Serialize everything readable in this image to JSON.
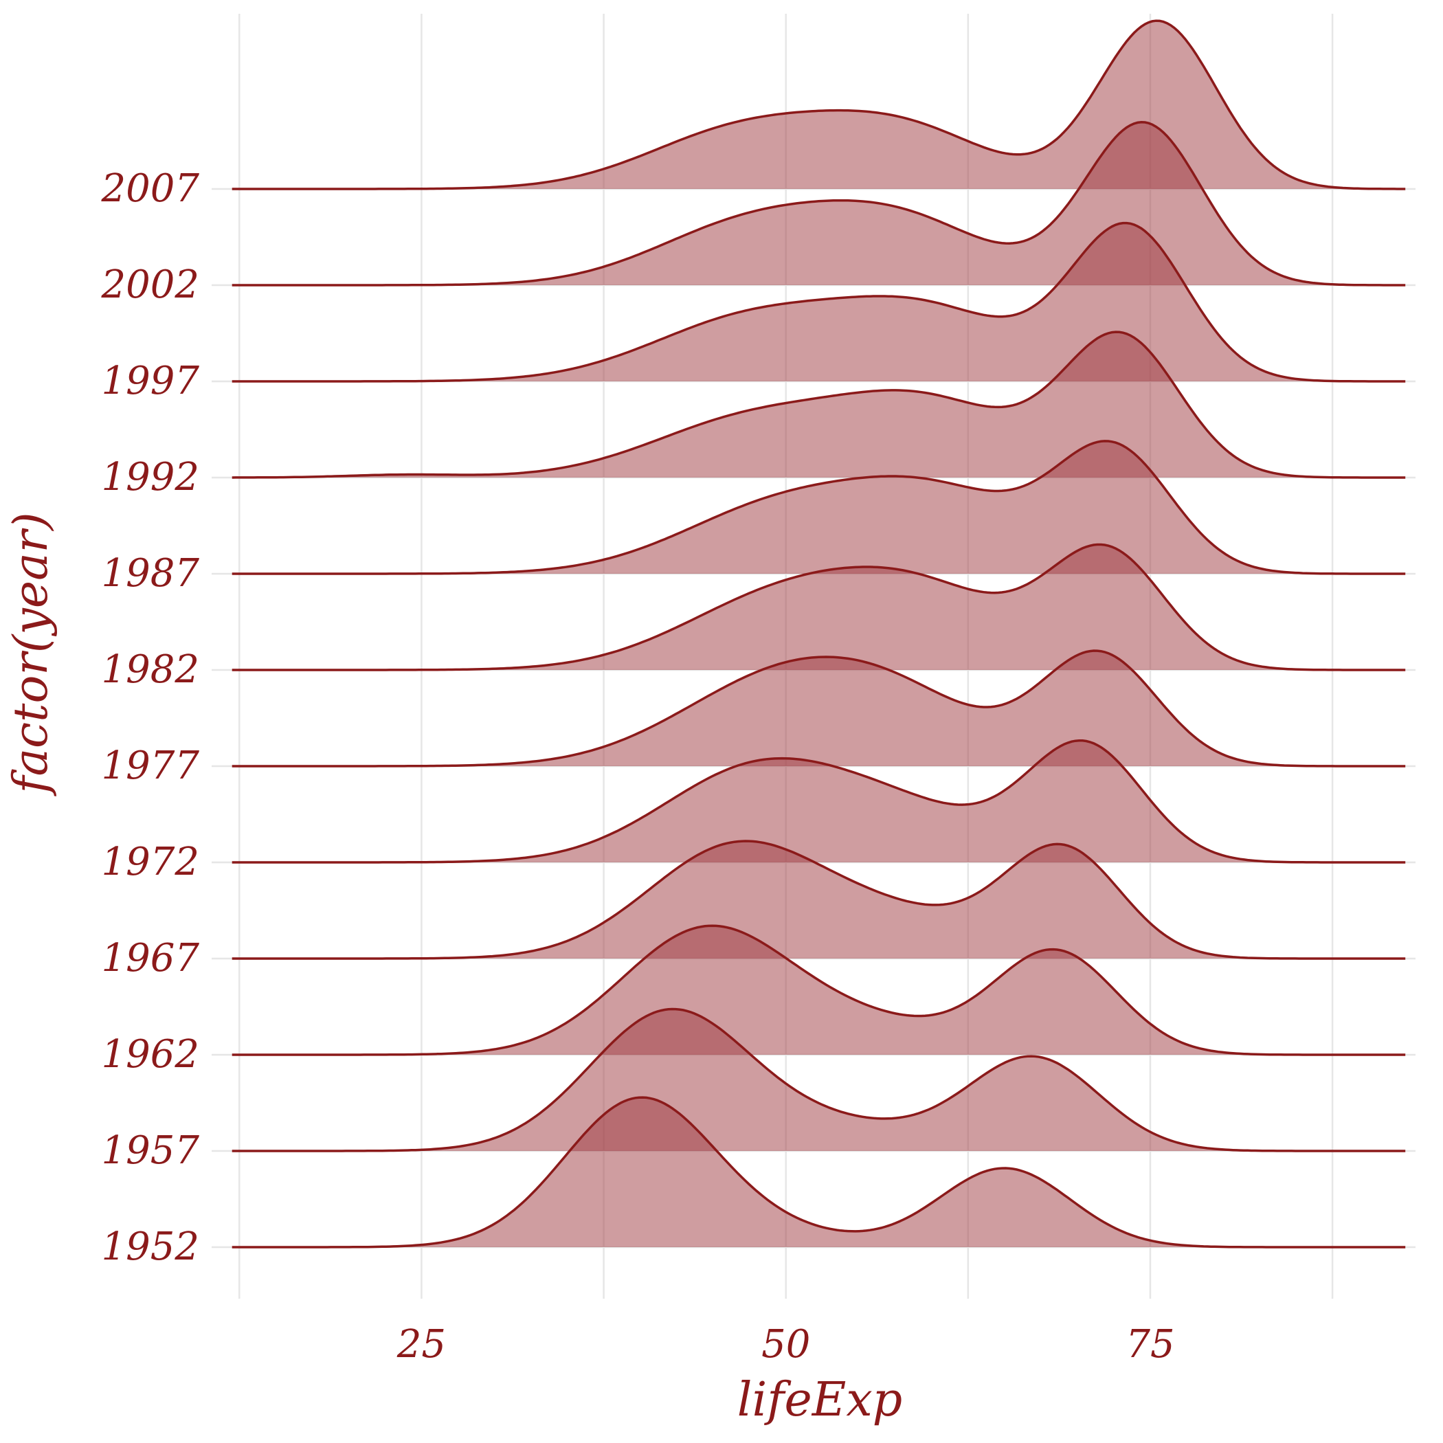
{
  "chart_data": {
    "type": "ridgeline",
    "title": "",
    "xlabel": "lifeExp",
    "ylabel": "factor(year)",
    "xlim": [
      10.6,
      93.2
    ],
    "x_ticks": [
      25,
      50,
      75
    ],
    "x_minor_grid": [
      12.5,
      37.5,
      62.5,
      87.5
    ],
    "grid": true,
    "fill_color": "#a03c41",
    "line_color": "#8b1a1a",
    "text_color": "#8b1a1a",
    "categories": [
      "1952",
      "1957",
      "1962",
      "1967",
      "1972",
      "1977",
      "1982",
      "1987",
      "1992",
      "1997",
      "2002",
      "2007"
    ],
    "series": [
      {
        "name": "1952",
        "peaks": [
          {
            "mu": 40.0,
            "sigma": 5.2,
            "h": 1.54
          },
          {
            "mu": 50.0,
            "sigma": 5.0,
            "h": 0.12
          },
          {
            "mu": 65.0,
            "sigma": 4.5,
            "h": 0.82
          }
        ]
      },
      {
        "name": "1957",
        "peaks": [
          {
            "mu": 42.0,
            "sigma": 5.5,
            "h": 1.44
          },
          {
            "mu": 54.0,
            "sigma": 6.0,
            "h": 0.25
          },
          {
            "mu": 67.0,
            "sigma": 4.5,
            "h": 0.96
          }
        ]
      },
      {
        "name": "1962",
        "peaks": [
          {
            "mu": 44.5,
            "sigma": 5.8,
            "h": 1.29
          },
          {
            "mu": 56.0,
            "sigma": 6.0,
            "h": 0.3
          },
          {
            "mu": 68.5,
            "sigma": 4.2,
            "h": 1.06
          }
        ]
      },
      {
        "name": "1967",
        "peaks": [
          {
            "mu": 46.5,
            "sigma": 6.0,
            "h": 1.15
          },
          {
            "mu": 58.0,
            "sigma": 6.0,
            "h": 0.4
          },
          {
            "mu": 69.0,
            "sigma": 4.0,
            "h": 1.11
          }
        ]
      },
      {
        "name": "1972",
        "peaks": [
          {
            "mu": 48.0,
            "sigma": 6.5,
            "h": 0.96
          },
          {
            "mu": 58.5,
            "sigma": 6.0,
            "h": 0.45
          },
          {
            "mu": 70.5,
            "sigma": 4.0,
            "h": 1.2
          }
        ]
      },
      {
        "name": "1977",
        "peaks": [
          {
            "mu": 49.5,
            "sigma": 7.0,
            "h": 0.87
          },
          {
            "mu": 58.0,
            "sigma": 6.0,
            "h": 0.52
          },
          {
            "mu": 71.5,
            "sigma": 4.0,
            "h": 1.15
          }
        ]
      },
      {
        "name": "1982",
        "peaks": [
          {
            "mu": 50.0,
            "sigma": 7.0,
            "h": 0.77
          },
          {
            "mu": 60.0,
            "sigma": 6.0,
            "h": 0.67
          },
          {
            "mu": 72.0,
            "sigma": 4.0,
            "h": 1.2
          }
        ]
      },
      {
        "name": "1987",
        "peaks": [
          {
            "mu": 50.0,
            "sigma": 7.0,
            "h": 0.72
          },
          {
            "mu": 61.0,
            "sigma": 6.0,
            "h": 0.72
          },
          {
            "mu": 72.5,
            "sigma": 4.0,
            "h": 1.25
          }
        ]
      },
      {
        "name": "1992",
        "peaks": [
          {
            "mu": 24.0,
            "sigma": 4.0,
            "h": 0.03
          },
          {
            "mu": 48.0,
            "sigma": 7.0,
            "h": 0.62
          },
          {
            "mu": 60.0,
            "sigma": 6.0,
            "h": 0.72
          },
          {
            "mu": 73.0,
            "sigma": 4.0,
            "h": 1.44
          }
        ]
      },
      {
        "name": "1997",
        "peaks": [
          {
            "mu": 48.0,
            "sigma": 7.0,
            "h": 0.67
          },
          {
            "mu": 60.0,
            "sigma": 6.0,
            "h": 0.67
          },
          {
            "mu": 73.5,
            "sigma": 4.0,
            "h": 1.59
          }
        ]
      },
      {
        "name": "2002",
        "peaks": [
          {
            "mu": 47.5,
            "sigma": 6.5,
            "h": 0.62
          },
          {
            "mu": 58.0,
            "sigma": 6.0,
            "h": 0.63
          },
          {
            "mu": 74.5,
            "sigma": 4.0,
            "h": 1.68
          }
        ]
      },
      {
        "name": "2007",
        "peaks": [
          {
            "mu": 47.0,
            "sigma": 6.5,
            "h": 0.6
          },
          {
            "mu": 58.0,
            "sigma": 6.0,
            "h": 0.6
          },
          {
            "mu": 75.5,
            "sigma": 4.0,
            "h": 1.74
          }
        ]
      }
    ]
  }
}
